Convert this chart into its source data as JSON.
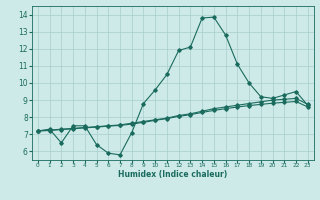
{
  "xlabel": "Humidex (Indice chaleur)",
  "xlim": [
    -0.5,
    23.5
  ],
  "ylim": [
    5.5,
    14.5
  ],
  "yticks": [
    6,
    7,
    8,
    9,
    10,
    11,
    12,
    13,
    14
  ],
  "xticks": [
    0,
    1,
    2,
    3,
    4,
    5,
    6,
    7,
    8,
    9,
    10,
    11,
    12,
    13,
    14,
    15,
    16,
    17,
    18,
    19,
    20,
    21,
    22,
    23
  ],
  "bg_color": "#ceeae8",
  "line_color": "#1a6b5e",
  "grid_color": "#a8cece",
  "series": [
    {
      "x": [
        0,
        1,
        2,
        3,
        4,
        5,
        6,
        7,
        8,
        9,
        10,
        11,
        12,
        13,
        14,
        15,
        16,
        17,
        18,
        19,
        20,
        21,
        22,
        23
      ],
      "y": [
        7.2,
        7.3,
        6.5,
        7.5,
        7.5,
        6.4,
        5.9,
        5.8,
        7.1,
        8.8,
        9.6,
        10.5,
        11.9,
        12.1,
        13.8,
        13.85,
        12.8,
        11.1,
        10.0,
        9.2,
        9.1,
        9.3,
        9.5,
        8.7
      ]
    },
    {
      "x": [
        0,
        1,
        2,
        3,
        4,
        5,
        6,
        7,
        8,
        9,
        10,
        11,
        12,
        13,
        14,
        15,
        16,
        17,
        18,
        19,
        20,
        21,
        22,
        23
      ],
      "y": [
        7.2,
        7.25,
        7.3,
        7.35,
        7.4,
        7.45,
        7.5,
        7.55,
        7.65,
        7.75,
        7.85,
        7.95,
        8.1,
        8.2,
        8.35,
        8.5,
        8.6,
        8.7,
        8.8,
        8.9,
        9.0,
        9.05,
        9.1,
        8.75
      ]
    },
    {
      "x": [
        0,
        1,
        2,
        3,
        4,
        5,
        6,
        7,
        8,
        9,
        10,
        11,
        12,
        13,
        14,
        15,
        16,
        17,
        18,
        19,
        20,
        21,
        22,
        23
      ],
      "y": [
        7.2,
        7.22,
        7.28,
        7.32,
        7.38,
        7.42,
        7.48,
        7.52,
        7.6,
        7.7,
        7.82,
        7.92,
        8.05,
        8.15,
        8.28,
        8.4,
        8.5,
        8.6,
        8.68,
        8.75,
        8.82,
        8.87,
        8.92,
        8.6
      ]
    }
  ]
}
